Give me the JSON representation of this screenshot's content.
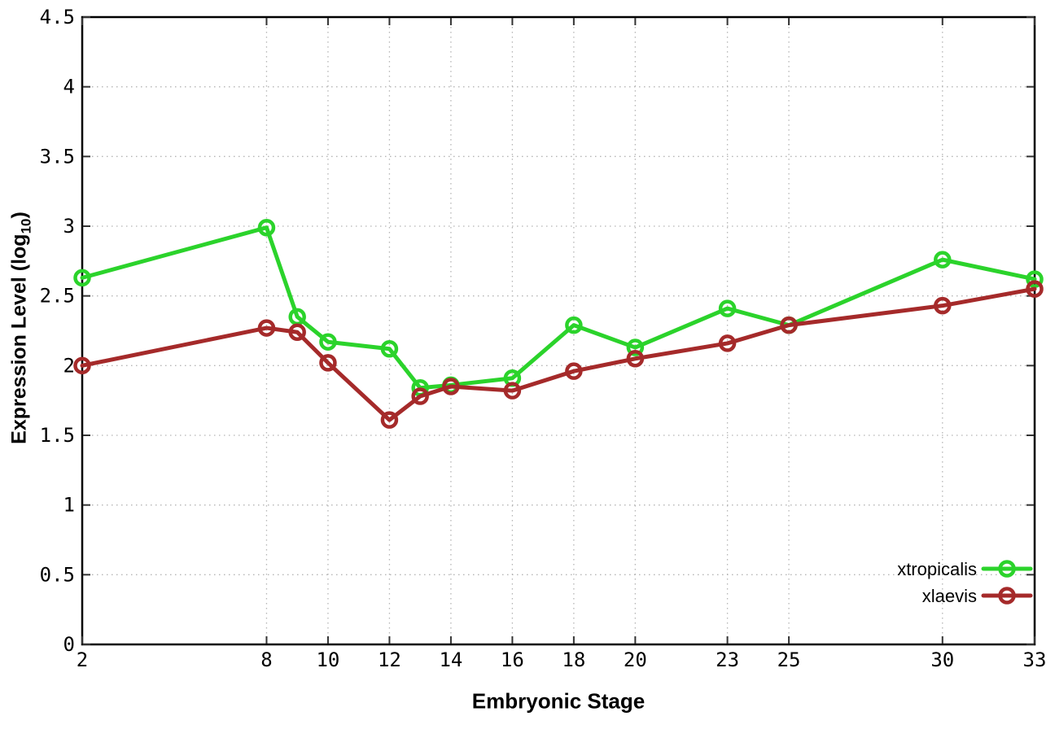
{
  "chart_data": {
    "type": "line",
    "title": "",
    "xlabel": "Embryonic Stage",
    "ylabel_prefix": "Expression Level (log",
    "ylabel_sub": "10",
    "ylabel_suffix": ")",
    "x": [
      2,
      8,
      9,
      10,
      12,
      13,
      14,
      16,
      18,
      20,
      23,
      25,
      30,
      33
    ],
    "series": [
      {
        "name": "xtropicalis",
        "color": "#2bd32b",
        "marker": "open-circle",
        "values": [
          2.63,
          2.99,
          2.35,
          2.17,
          2.12,
          1.84,
          1.86,
          1.91,
          2.29,
          2.13,
          2.41,
          2.29,
          2.76,
          2.62
        ]
      },
      {
        "name": "xlaevis",
        "color": "#a52a2a",
        "marker": "open-circle",
        "values": [
          2.0,
          2.27,
          2.24,
          2.02,
          1.61,
          1.78,
          1.85,
          1.82,
          1.96,
          2.05,
          2.16,
          2.29,
          2.43,
          2.55
        ]
      }
    ],
    "x_tick_values": [
      2,
      8,
      10,
      12,
      14,
      16,
      18,
      20,
      23,
      25,
      30,
      33
    ],
    "x_tick_labels": [
      "2",
      "8",
      "10",
      "12",
      "14",
      "16",
      "18",
      "20",
      "23",
      "25",
      "30",
      "33"
    ],
    "y_tick_values": [
      0,
      0.5,
      1,
      1.5,
      2,
      2.5,
      3,
      3.5,
      4,
      4.5
    ],
    "y_tick_labels": [
      "0",
      "0.5",
      "1",
      "1.5",
      "2",
      "2.5",
      "3",
      "3.5",
      "4",
      "4.5"
    ],
    "xlim": [
      2,
      33
    ],
    "ylim": [
      0,
      4.5
    ],
    "grid": true,
    "legend_position": "bottom-right",
    "grid_color": "#b5b5b5",
    "border_color": "#000000",
    "tick_color": "#333333",
    "text_color": "#000000"
  }
}
